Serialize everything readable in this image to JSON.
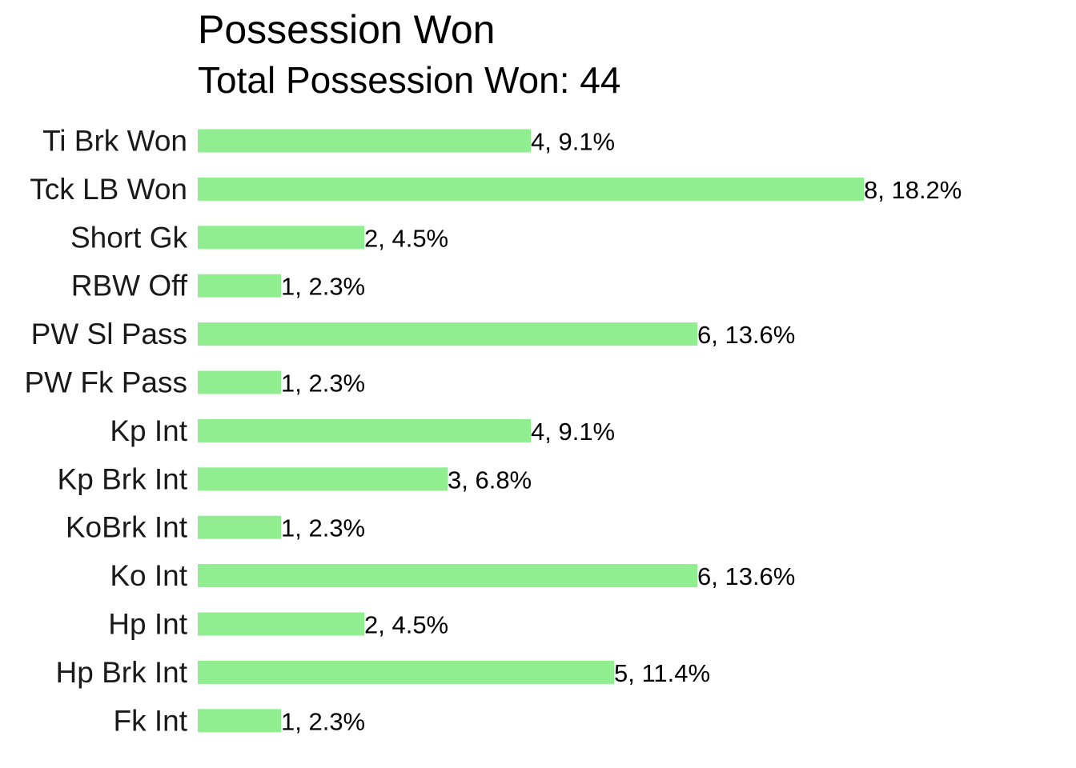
{
  "chart_data": {
    "type": "bar",
    "orientation": "horizontal",
    "title": "Possession Won",
    "subtitle": "Total Possession Won: 44",
    "categories": [
      "Ti Brk Won",
      "Tck LB Won",
      "Short Gk",
      "RBW Off",
      "PW Sl Pass",
      "PW Fk Pass",
      "Kp Int",
      "Kp Brk Int",
      "KoBrk Int",
      "Ko Int",
      "Hp Int",
      "Hp Brk Int",
      "Fk Int"
    ],
    "values": [
      4,
      8,
      2,
      1,
      6,
      1,
      4,
      3,
      1,
      6,
      2,
      5,
      1
    ],
    "data_labels": [
      "4, 9.1%",
      "8, 18.2%",
      "2, 4.5%",
      "1, 2.3%",
      "6, 13.6%",
      "1, 2.3%",
      "4, 9.1%",
      "3, 6.8%",
      "1, 2.3%",
      "6, 13.6%",
      "2, 4.5%",
      "5, 11.4%",
      "1, 2.3%"
    ],
    "xlim": [
      0,
      8
    ],
    "grid": false,
    "legend": "none",
    "colors": {
      "bar": "#90ee90",
      "text": "#000000",
      "category_text": "#1a1a1a"
    }
  }
}
